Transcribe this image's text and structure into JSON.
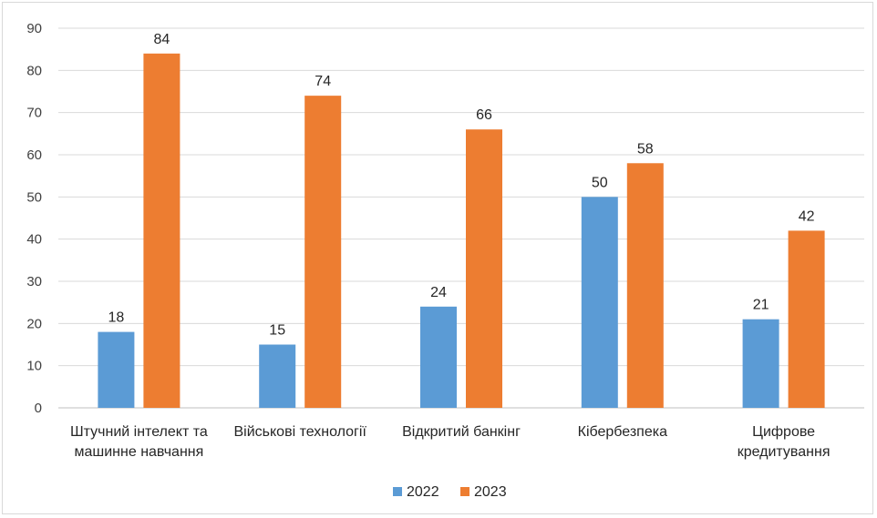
{
  "chart_data": {
    "type": "bar",
    "categories": [
      [
        "Штучний інтелект та",
        "машинне навчання"
      ],
      [
        "Військові технології"
      ],
      [
        "Відкритий банкінг"
      ],
      [
        "Кібербезпека"
      ],
      [
        "Цифрове",
        "кредитування"
      ]
    ],
    "series": [
      {
        "name": "2022",
        "values": [
          18,
          15,
          24,
          50,
          21
        ],
        "color": "#5b9bd5"
      },
      {
        "name": "2023",
        "values": [
          84,
          74,
          66,
          58,
          42
        ],
        "color": "#ed7d31"
      }
    ],
    "ylim": [
      0,
      90
    ],
    "yticks": [
      0,
      10,
      20,
      30,
      40,
      50,
      60,
      70,
      80,
      90
    ],
    "grid": true,
    "data_labels": true,
    "legend_position": "bottom",
    "gridline_color": "#d9d9d9",
    "axis_color": "#bfbfbf"
  }
}
